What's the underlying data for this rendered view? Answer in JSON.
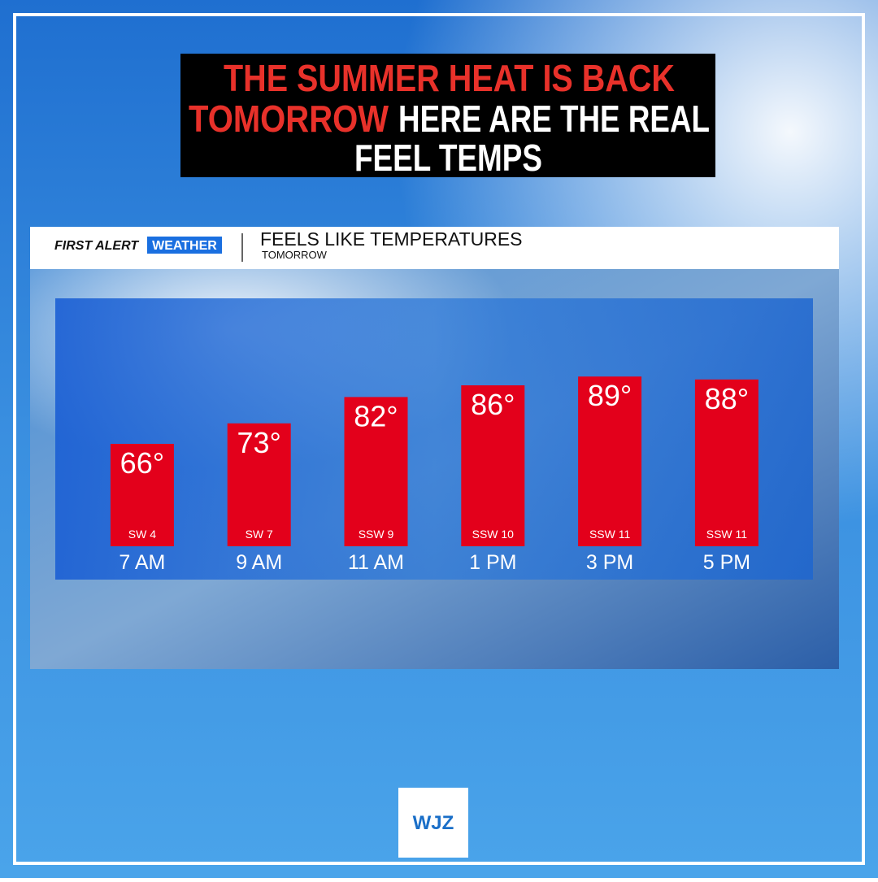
{
  "headline": [
    "THE SUMMER HEAT IS BACK",
    "TOMORROW",
    "HERE ARE THE REAL",
    "FEEL TEMPS"
  ],
  "brand": [
    "FIRST ALERT",
    "WEATHER"
  ],
  "logo": "WJZ",
  "chart_data": {
    "type": "bar",
    "title": "FEELS LIKE TEMPERATURES",
    "subtitle": "TOMORROW",
    "categories": [
      "7 AM",
      "9 AM",
      "11 AM",
      "1 PM",
      "3 PM",
      "5 PM"
    ],
    "values": [
      66,
      73,
      82,
      86,
      89,
      88
    ],
    "value_labels": [
      "66°",
      "73°",
      "82°",
      "86°",
      "89°",
      "88°"
    ],
    "wind": [
      "SW 4",
      "SW 7",
      "SSW 9",
      "SSW 10",
      "SSW 11",
      "SSW 11"
    ],
    "color": "#e3001b",
    "ylim": [
      31,
      100
    ]
  }
}
